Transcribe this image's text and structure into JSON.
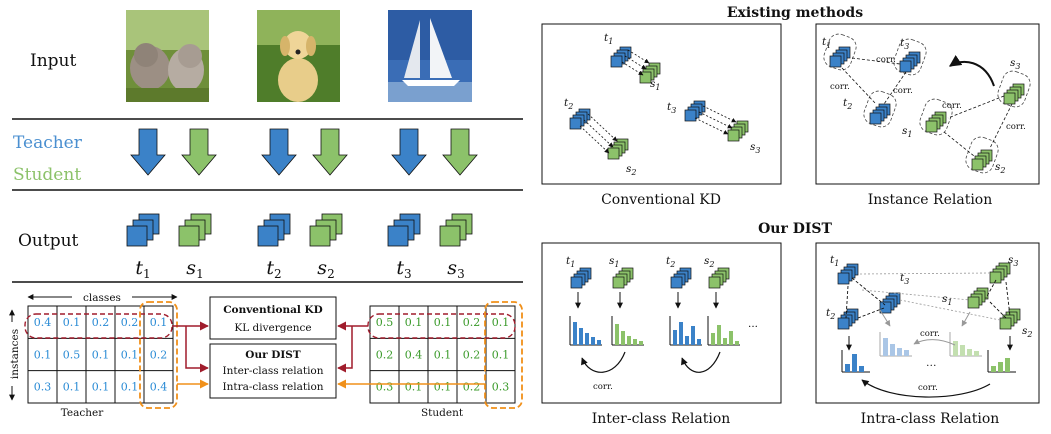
{
  "left": {
    "input_label": "Input",
    "teacher_label": "Teacher",
    "student_label": "Student",
    "output_label": "Output",
    "pairs": [
      {
        "t": "t",
        "t_sub": "1",
        "s": "s",
        "s_sub": "1"
      },
      {
        "t": "t",
        "t_sub": "2",
        "s": "s",
        "s_sub": "2"
      },
      {
        "t": "t",
        "t_sub": "3",
        "s": "s",
        "s_sub": "3"
      }
    ],
    "classes_label": "classes",
    "instances_label": "instances",
    "teacher_matrix": [
      [
        "0.4",
        "0.1",
        "0.2",
        "0.2",
        "0.1"
      ],
      [
        "0.1",
        "0.5",
        "0.1",
        "0.1",
        "0.2"
      ],
      [
        "0.3",
        "0.1",
        "0.1",
        "0.1",
        "0.4"
      ]
    ],
    "student_matrix": [
      [
        "0.5",
        "0.1",
        "0.1",
        "0.2",
        "0.1"
      ],
      [
        "0.2",
        "0.4",
        "0.1",
        "0.2",
        "0.1"
      ],
      [
        "0.3",
        "0.1",
        "0.1",
        "0.2",
        "0.3"
      ]
    ],
    "teacher_caption": "Teacher",
    "student_caption": "Student",
    "box_kd_title": "Conventional KD",
    "box_kd_sub": "KL divergence",
    "box_dist_title": "Our DIST",
    "box_dist_inter": "Inter-class relation",
    "box_dist_intra": "Intra-class relation"
  },
  "right": {
    "existing_title": "Existing methods",
    "ours_title": "Our DIST",
    "panel_kd_caption": "Conventional KD",
    "panel_instance_caption": "Instance Relation",
    "panel_inter_caption": "Inter-class Relation",
    "panel_intra_caption": "Intra-class Relation",
    "corr": "corr.",
    "ellipsis": "···",
    "dots": "…",
    "t1": "t",
    "t1s": "1",
    "t2s": "2",
    "t3s": "3",
    "s": "s"
  },
  "colors": {
    "teacher": "#3b82c8",
    "student": "#8cc26a",
    "red": "#a01c2c",
    "orange": "#f0901a",
    "blue_text": "#2a8bd5",
    "green_text": "#3a9a2a"
  },
  "icons": [
    "kitten-photo",
    "puppy-photo",
    "sailboat-photo"
  ]
}
